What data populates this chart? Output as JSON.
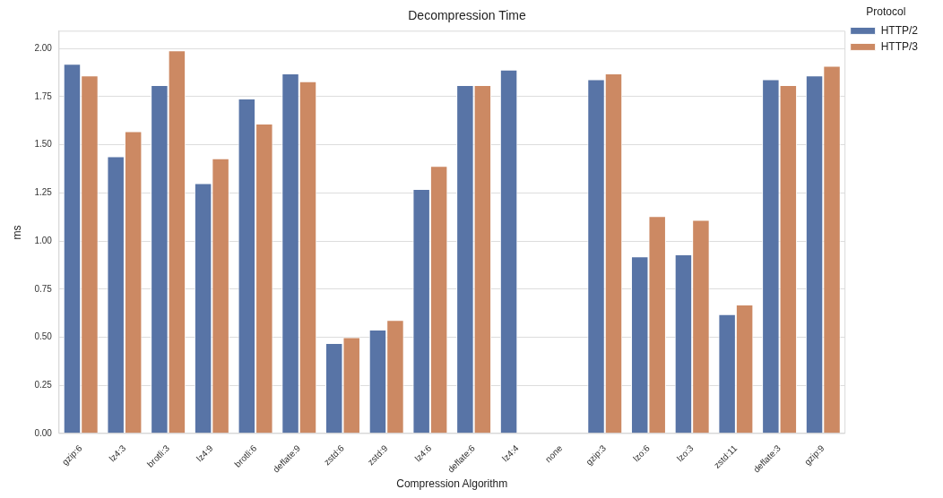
{
  "chart_data": {
    "type": "bar",
    "title": "Decompression Time",
    "xlabel": "Compression Algorithm",
    "ylabel": "ms",
    "legend_title": "Protocol",
    "categories": [
      "gzip:6",
      "lz4:3",
      "brotli:3",
      "lz4:9",
      "brotli:6",
      "deflate:9",
      "zstd:6",
      "zstd:9",
      "lz4:6",
      "deflate:6",
      "lz4:4",
      "none",
      "gzip:3",
      "lzo:6",
      "lzo:3",
      "zstd:11",
      "deflate:3",
      "gzip:9"
    ],
    "series": [
      {
        "name": "HTTP/2",
        "color": "#5874a6",
        "values": [
          1.92,
          1.44,
          1.81,
          1.3,
          1.74,
          1.87,
          0.47,
          0.54,
          1.27,
          1.81,
          1.89,
          null,
          1.84,
          0.92,
          0.93,
          0.62,
          1.84,
          1.86
        ]
      },
      {
        "name": "HTTP/3",
        "color": "#cc8963",
        "values": [
          1.86,
          1.57,
          1.99,
          1.43,
          1.61,
          1.83,
          0.5,
          0.59,
          1.39,
          1.81,
          null,
          null,
          1.87,
          1.13,
          1.11,
          0.67,
          1.81,
          1.91
        ]
      }
    ],
    "ylim": [
      0,
      2.09
    ],
    "yticks": [
      {
        "value": 0,
        "label": "0.00"
      },
      {
        "value": 0.25,
        "label": "0.25"
      },
      {
        "value": 0.5,
        "label": "0.50"
      },
      {
        "value": 0.75,
        "label": "0.75"
      },
      {
        "value": 1,
        "label": "1.00"
      },
      {
        "value": 1.25,
        "label": "1.25"
      },
      {
        "value": 1.5,
        "label": "1.50"
      },
      {
        "value": 1.75,
        "label": "1.75"
      },
      {
        "value": 2,
        "label": "2.00"
      }
    ],
    "grid": "y",
    "legend": "top right"
  }
}
